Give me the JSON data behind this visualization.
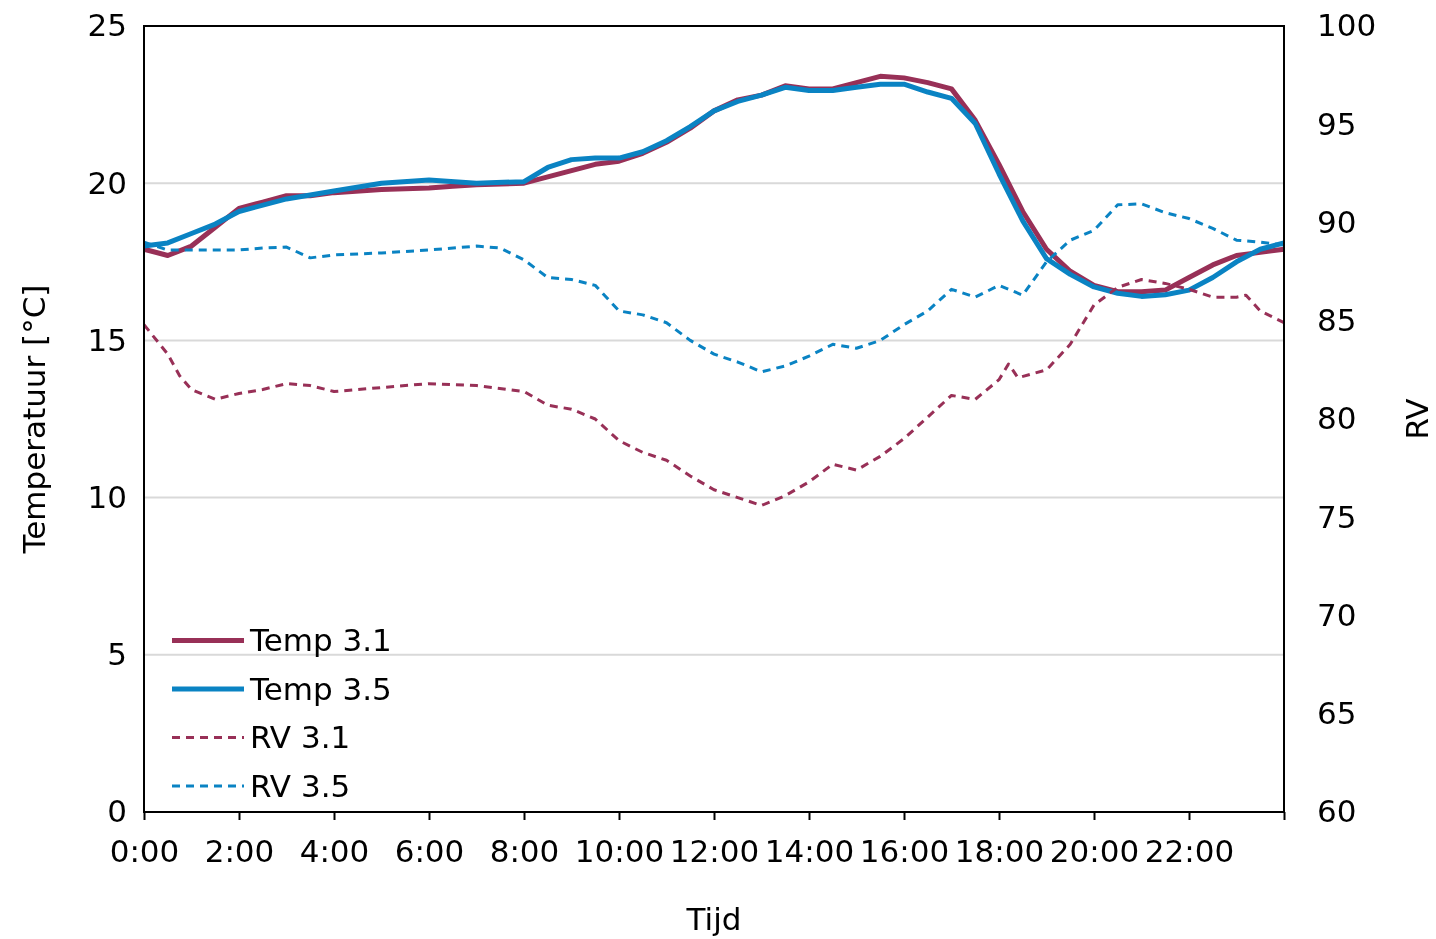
{
  "chart_data": {
    "type": "line",
    "xlabel": "Tijd",
    "ylabel": "Temperatuur [°C]",
    "y2label": "RV",
    "xlim": [
      0,
      24
    ],
    "xticks": [
      {
        "value": 0,
        "label": "0:00"
      },
      {
        "value": 2,
        "label": "2:00"
      },
      {
        "value": 4,
        "label": "4:00"
      },
      {
        "value": 6,
        "label": "6:00"
      },
      {
        "value": 8,
        "label": "8:00"
      },
      {
        "value": 10,
        "label": "10:00"
      },
      {
        "value": 12,
        "label": "12:00"
      },
      {
        "value": 14,
        "label": "14:00"
      },
      {
        "value": 16,
        "label": "16:00"
      },
      {
        "value": 18,
        "label": "18:00"
      },
      {
        "value": 20,
        "label": "20:00"
      },
      {
        "value": 22,
        "label": "22:00"
      },
      {
        "value": 24,
        "label": null
      }
    ],
    "ylim": [
      0,
      25
    ],
    "yticks": [
      0,
      5,
      10,
      15,
      20,
      25
    ],
    "y2lim": [
      60,
      100
    ],
    "y2ticks": [
      60,
      65,
      70,
      75,
      80,
      85,
      90,
      95,
      100
    ],
    "grid": "y",
    "legend": "bottom left",
    "series": [
      {
        "name": "Temp 3.1",
        "color": "#983057",
        "line_style": "solid",
        "x": [
          0,
          0.5,
          1,
          1.5,
          2,
          2.5,
          3,
          3.5,
          4,
          5,
          6,
          6.5,
          7,
          8,
          8.5,
          9,
          9.5,
          10,
          10.5,
          11,
          11.5,
          12,
          12.5,
          13,
          13.5,
          14,
          14.5,
          15,
          15.5,
          16,
          16.5,
          17,
          17.5,
          18,
          18.5,
          19,
          19.5,
          20,
          20.5,
          21,
          21.5,
          22,
          22.5,
          23,
          23.5,
          24
        ],
        "values": [
          17.9,
          17.7,
          18.0,
          18.6,
          19.2,
          19.4,
          19.6,
          19.6,
          19.7,
          19.8,
          19.85,
          19.9,
          19.95,
          20.0,
          20.2,
          20.4,
          20.6,
          20.7,
          20.95,
          21.3,
          21.75,
          22.3,
          22.65,
          22.8,
          23.1,
          23.0,
          23.0,
          23.2,
          23.4,
          23.35,
          23.2,
          23.0,
          22.0,
          20.6,
          19.1,
          17.9,
          17.2,
          16.75,
          16.55,
          16.55,
          16.6,
          17.0,
          17.4,
          17.7,
          17.8,
          17.9
        ]
      },
      {
        "name": "Temp 3.5",
        "color": "#0a83c3",
        "line_style": "solid",
        "x": [
          0,
          0.5,
          1,
          1.5,
          2,
          3,
          4,
          5,
          6,
          7,
          8,
          8.5,
          9,
          9.5,
          10,
          10.5,
          11,
          11.5,
          12,
          12.5,
          13,
          13.5,
          14,
          14.5,
          15,
          15.5,
          16,
          16.5,
          17,
          17.5,
          18,
          18.5,
          19,
          19.5,
          20,
          20.5,
          21,
          21.5,
          22,
          22.5,
          23,
          23.5,
          24
        ],
        "values": [
          18.0,
          18.1,
          18.4,
          18.7,
          19.1,
          19.5,
          19.75,
          20.0,
          20.1,
          20.0,
          20.05,
          20.5,
          20.75,
          20.8,
          20.8,
          21.0,
          21.35,
          21.8,
          22.3,
          22.6,
          22.8,
          23.05,
          22.95,
          22.95,
          23.05,
          23.15,
          23.15,
          22.9,
          22.7,
          21.9,
          20.3,
          18.8,
          17.6,
          17.1,
          16.7,
          16.5,
          16.4,
          16.45,
          16.6,
          17.0,
          17.5,
          17.9,
          18.1
        ]
      },
      {
        "name": "RV 3.1",
        "color": "#983057",
        "line_style": "dashed",
        "axis": "y2",
        "x": [
          0,
          0.5,
          0.75,
          1,
          1.5,
          2,
          2.5,
          3,
          3.5,
          4,
          5,
          5.5,
          6,
          7,
          8,
          8.5,
          9,
          9.5,
          10,
          10.5,
          11,
          11.5,
          12,
          12.5,
          13,
          13.5,
          14,
          14.5,
          15,
          15.5,
          16,
          16.5,
          17,
          17.5,
          18,
          18.2,
          18.4,
          19,
          19.5,
          20,
          20.5,
          21,
          21.5,
          22,
          22.5,
          23,
          23.2,
          23.5,
          24
        ],
        "values": [
          84.8,
          83.3,
          82.2,
          81.5,
          81.0,
          81.3,
          81.5,
          81.8,
          81.7,
          81.4,
          81.6,
          81.7,
          81.8,
          81.7,
          81.4,
          80.7,
          80.5,
          80.0,
          78.9,
          78.3,
          77.9,
          77.1,
          76.4,
          76.0,
          75.6,
          76.1,
          76.8,
          77.7,
          77.4,
          78.1,
          79.0,
          80.1,
          81.2,
          81.0,
          82.0,
          82.8,
          82.1,
          82.5,
          83.8,
          85.8,
          86.7,
          87.1,
          86.9,
          86.6,
          86.2,
          86.2,
          86.3,
          85.5,
          84.9
        ]
      },
      {
        "name": "RV 3.5",
        "color": "#0a83c3",
        "line_style": "dashed",
        "axis": "y2",
        "x": [
          0,
          0.5,
          1,
          2,
          2.5,
          3,
          3.5,
          4,
          5,
          6,
          7,
          7.5,
          8,
          8.5,
          9,
          9.5,
          10,
          10.5,
          11,
          11.5,
          12,
          12.5,
          13,
          13.5,
          14,
          14.5,
          15,
          15.5,
          16,
          16.5,
          17,
          17.5,
          18,
          18.5,
          19,
          19.5,
          20,
          20.5,
          21,
          21.5,
          22,
          22.5,
          23,
          23.5,
          24
        ],
        "values": [
          89.0,
          88.6,
          88.6,
          88.6,
          88.7,
          88.75,
          88.2,
          88.35,
          88.45,
          88.6,
          88.8,
          88.7,
          88.1,
          87.2,
          87.1,
          86.8,
          85.5,
          85.3,
          84.9,
          84.0,
          83.3,
          82.9,
          82.4,
          82.7,
          83.2,
          83.8,
          83.6,
          84.0,
          84.8,
          85.5,
          86.6,
          86.2,
          86.8,
          86.3,
          88.0,
          89.1,
          89.6,
          90.9,
          90.95,
          90.5,
          90.2,
          89.7,
          89.1,
          89.0,
          88.85
        ]
      }
    ]
  }
}
